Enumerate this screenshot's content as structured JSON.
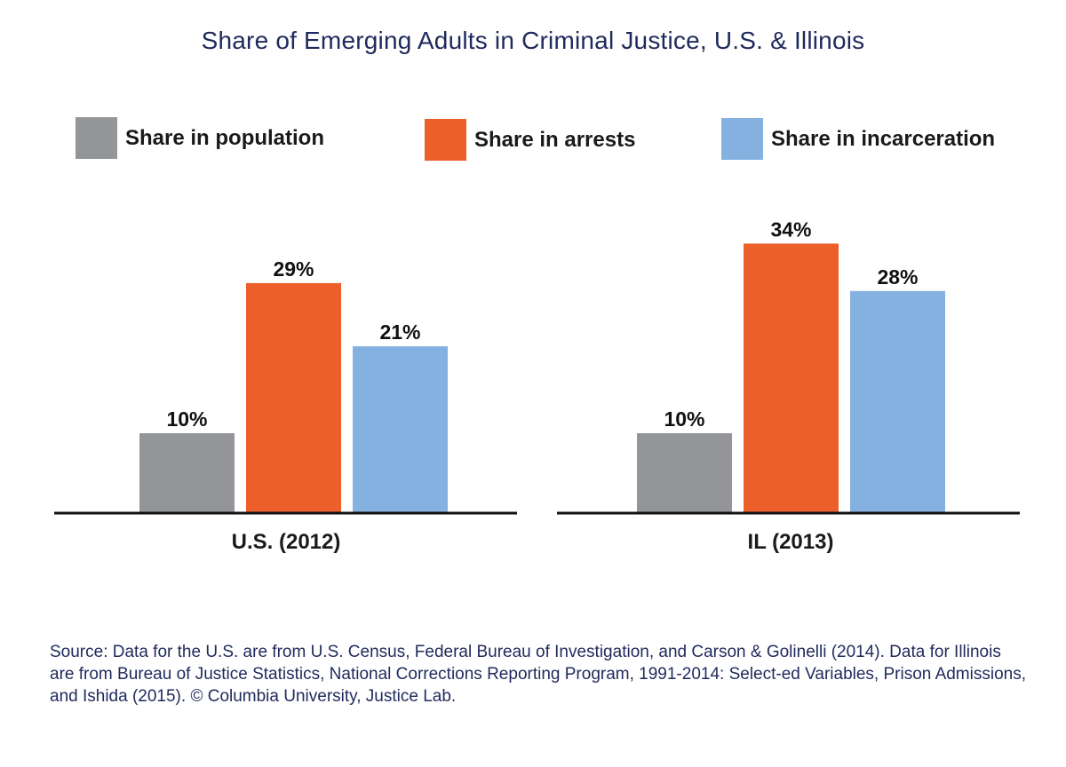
{
  "chart_data": {
    "type": "bar",
    "title": "Share of Emerging Adults in Criminal Justice, U.S. & Illinois",
    "categories": [
      "U.S. (2012)",
      "IL (2013)"
    ],
    "series": [
      {
        "name": "Share in population",
        "values": [
          10,
          10
        ],
        "labels": [
          "10%",
          "10%"
        ],
        "color": "#939598"
      },
      {
        "name": "Share in arrests",
        "values": [
          29,
          34
        ],
        "labels": [
          "29%",
          "34%"
        ],
        "color": "#ec5f2b"
      },
      {
        "name": "Share in incarceration",
        "values": [
          21,
          28
        ],
        "labels": [
          "21%",
          "28%"
        ],
        "color": "#84b1e0"
      }
    ],
    "ylim": [
      0,
      35
    ],
    "grid": false,
    "legend_position": "top"
  },
  "source_text": "Source: Data for the U.S. are from U.S. Census, Federal Bureau of Investigation, and Carson & Golinelli (2014). Data for Illinois are from Bureau of Justice Statistics, National Corrections Reporting Program, 1991-2014: Select-ed Variables, Prison Admissions, and Ishida (2015). © Columbia University, Justice Lab."
}
